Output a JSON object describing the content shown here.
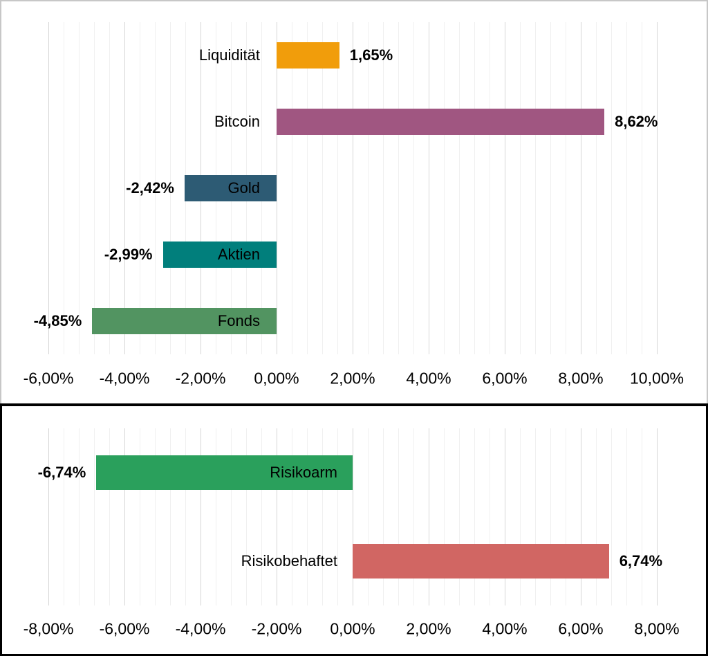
{
  "chart_data": [
    {
      "type": "bar",
      "orientation": "horizontal",
      "title": "",
      "xlabel": "",
      "ylabel": "",
      "legend": false,
      "grid": true,
      "categories": [
        "Liquidität",
        "Bitcoin",
        "Gold",
        "Aktien",
        "Fonds"
      ],
      "values": [
        1.65,
        8.62,
        -2.42,
        -2.99,
        -4.85
      ],
      "value_labels": [
        "1,65%",
        "8,62%",
        "-2,42%",
        "-2,99%",
        "-4,85%"
      ],
      "bar_colors": [
        "#F19D0B",
        "#A05681",
        "#2D5B74",
        "#017F7C",
        "#529461"
      ],
      "xlim": [
        -6,
        10
      ],
      "x_tick_step": 2,
      "minor_grid_step": 0.4,
      "x_tick_labels": [
        "-6,00%",
        "-4,00%",
        "-2,00%",
        "0,00%",
        "2,00%",
        "4,00%",
        "6,00%",
        "8,00%",
        "10,00%"
      ]
    },
    {
      "type": "bar",
      "orientation": "horizontal",
      "title": "",
      "xlabel": "",
      "ylabel": "",
      "legend": false,
      "grid": true,
      "categories": [
        "Risikoarm",
        "Risikobehaftet"
      ],
      "values": [
        -6.74,
        6.74
      ],
      "value_labels": [
        "-6,74%",
        "6,74%"
      ],
      "bar_colors": [
        "#2AA05C",
        "#D16663"
      ],
      "xlim": [
        -8,
        8
      ],
      "x_tick_step": 2,
      "minor_grid_step": 0.4,
      "x_tick_labels": [
        "-8,00%",
        "-6,00%",
        "-4,00%",
        "-2,00%",
        "0,00%",
        "2,00%",
        "4,00%",
        "6,00%",
        "8,00%"
      ]
    }
  ]
}
